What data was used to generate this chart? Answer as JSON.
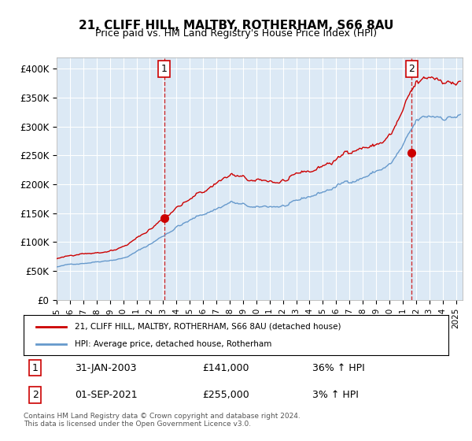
{
  "title1": "21, CLIFF HILL, MALTBY, ROTHERHAM, S66 8AU",
  "title2": "Price paid vs. HM Land Registry's House Price Index (HPI)",
  "bg_color": "#dce9f5",
  "plot_bg_color": "#dce9f5",
  "red_color": "#cc0000",
  "blue_color": "#6699cc",
  "ylim": [
    0,
    420000
  ],
  "yticks": [
    0,
    50000,
    100000,
    150000,
    200000,
    250000,
    300000,
    350000,
    400000
  ],
  "ytick_labels": [
    "£0",
    "£50K",
    "£100K",
    "£150K",
    "£200K",
    "£250K",
    "£300K",
    "£350K",
    "£400K"
  ],
  "sale1_date": 2003.08,
  "sale1_price": 141000,
  "sale2_date": 2021.67,
  "sale2_price": 255000,
  "legend_line1": "21, CLIFF HILL, MALTBY, ROTHERHAM, S66 8AU (detached house)",
  "legend_line2": "HPI: Average price, detached house, Rotherham",
  "note1_label": "1",
  "note1_date": "31-JAN-2003",
  "note1_price": "£141,000",
  "note1_hpi": "36% ↑ HPI",
  "note2_label": "2",
  "note2_date": "01-SEP-2021",
  "note2_price": "£255,000",
  "note2_hpi": "3% ↑ HPI",
  "footer": "Contains HM Land Registry data © Crown copyright and database right 2024.\nThis data is licensed under the Open Government Licence v3.0.",
  "xmin": 1995.0,
  "xmax": 2025.5
}
